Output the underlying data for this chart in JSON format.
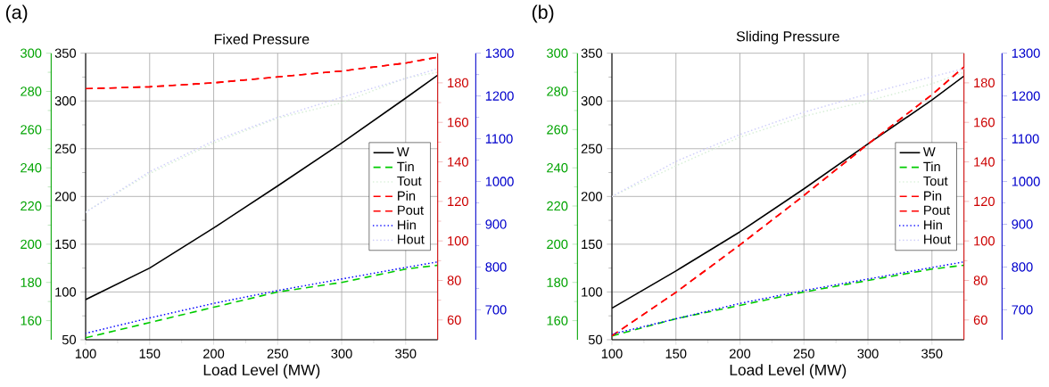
{
  "chart_data": [
    {
      "type": "line",
      "title": "Fixed Pressure",
      "xlabel": "Load Level (MW)",
      "annotations": [
        "(a)"
      ],
      "x": [
        100,
        150,
        200,
        250,
        300,
        350,
        375
      ],
      "xlim": [
        100,
        375
      ],
      "xticks": [
        100,
        150,
        200,
        250,
        300,
        350
      ],
      "ylim": [
        50,
        350
      ],
      "yticks": [
        50,
        100,
        150,
        200,
        250,
        300,
        350
      ],
      "y2lim": [
        150,
        300
      ],
      "y2ticks": [
        160,
        180,
        200,
        220,
        240,
        260,
        280,
        300
      ],
      "y3lim": [
        50,
        195
      ],
      "y3ticks": [
        60,
        80,
        100,
        120,
        140,
        160,
        180
      ],
      "grid": true,
      "legend": "right",
      "series": [
        {
          "name": "W",
          "color": "#000000",
          "line_style": "solid",
          "values": [
            92,
            125,
            167,
            211,
            256,
            303,
            327
          ]
        },
        {
          "name": "Tin",
          "color": "#00cc00",
          "axis": "y2",
          "line_style": "dashed",
          "values": [
            151,
            159,
            167,
            175,
            180,
            187,
            189
          ]
        },
        {
          "name": "Tout",
          "color": "#d8efd8",
          "axis": "y2",
          "line_style": "dotted",
          "values": [
            217,
            237,
            253,
            266,
            274,
            287,
            290
          ]
        },
        {
          "name": "Pin",
          "color": "#ff0000",
          "axis": "y3",
          "line_style": "dashed",
          "values": [
            177,
            178,
            180,
            183,
            186,
            190,
            193
          ]
        },
        {
          "name": "Pout",
          "color": "#ff0000",
          "axis": "y3",
          "line_style": "dashed",
          "values": [
            177,
            178,
            180,
            183,
            186,
            190,
            193
          ]
        }
      ]
    },
    {
      "type": "line",
      "title": "Sliding Pressure",
      "xlabel": "Load Level (MW)",
      "annotations": [
        "(b)"
      ],
      "x": [
        100,
        150,
        200,
        250,
        300,
        350,
        375
      ],
      "xlim": [
        100,
        375
      ],
      "xticks": [
        100,
        150,
        200,
        250,
        300,
        350
      ],
      "ylim": [
        50,
        350
      ],
      "yticks": [
        50,
        100,
        150,
        200,
        250,
        300,
        350
      ],
      "y2lim": [
        150,
        300
      ],
      "y2ticks": [
        160,
        180,
        200,
        220,
        240,
        260,
        280,
        300
      ],
      "y3lim": [
        50,
        195
      ],
      "y3ticks": [
        60,
        80,
        100,
        120,
        140,
        160,
        180
      ],
      "grid": true,
      "legend": "right",
      "series": [
        {
          "name": "W",
          "color": "#000000",
          "line_style": "solid",
          "values": [
            83,
            122,
            163,
            208,
            255,
            301,
            326
          ]
        },
        {
          "name": "Tin",
          "color": "#00cc00",
          "axis": "y2",
          "line_style": "dashed",
          "values": [
            152,
            161,
            168,
            175,
            181,
            187,
            189
          ]
        },
        {
          "name": "Tout",
          "color": "#d8efd8",
          "axis": "y2",
          "line_style": "dotted",
          "values": [
            225,
            241,
            256,
            267,
            275,
            284,
            290
          ]
        },
        {
          "name": "Pin",
          "color": "#ff0000",
          "axis": "y3",
          "line_style": "dashed",
          "values": [
            52,
            74,
            98,
            123,
            149,
            174,
            188
          ]
        },
        {
          "name": "Pout",
          "color": "#ff0000",
          "axis": "y3",
          "line_style": "dashed",
          "values": [
            52,
            74,
            98,
            123,
            149,
            174,
            188
          ]
        }
      ]
    },
    {
      "type": "line",
      "x": [
        100,
        150,
        200,
        250,
        300,
        350,
        375
      ],
      "xlim": [
        100,
        375
      ],
      "ylim": [
        630,
        1300
      ],
      "yticks": [
        700,
        800,
        900,
        1000,
        1100,
        1200,
        1300
      ],
      "tick_labels": "y",
      "series": [
        {
          "name": "Hin",
          "color": "#0000ff",
          "line_style": "dotted",
          "values": [
            645,
            681,
            715,
            745,
            772,
            799,
            812
          ]
        },
        {
          "name": "Hout",
          "color": "#d0d0fa",
          "line_style": "dotted",
          "values": [
            928,
            1023,
            1095,
            1150,
            1197,
            1241,
            1264
          ]
        }
      ]
    },
    {
      "type": "line",
      "x": [
        100,
        150,
        200,
        250,
        300,
        350,
        375
      ],
      "xlim": [
        100,
        375
      ],
      "ylim": [
        630,
        1300
      ],
      "yticks": [
        700,
        800,
        900,
        1000,
        1100,
        1200,
        1300
      ],
      "tick_labels": "y",
      "series": [
        {
          "name": "Hin",
          "color": "#0000ff",
          "line_style": "dotted",
          "values": [
            643,
            679,
            715,
            745,
            772,
            799,
            812
          ]
        },
        {
          "name": "Hout",
          "color": "#d0d0fa",
          "line_style": "dotted",
          "values": [
            965,
            1047,
            1110,
            1162,
            1205,
            1245,
            1264
          ]
        }
      ]
    }
  ]
}
